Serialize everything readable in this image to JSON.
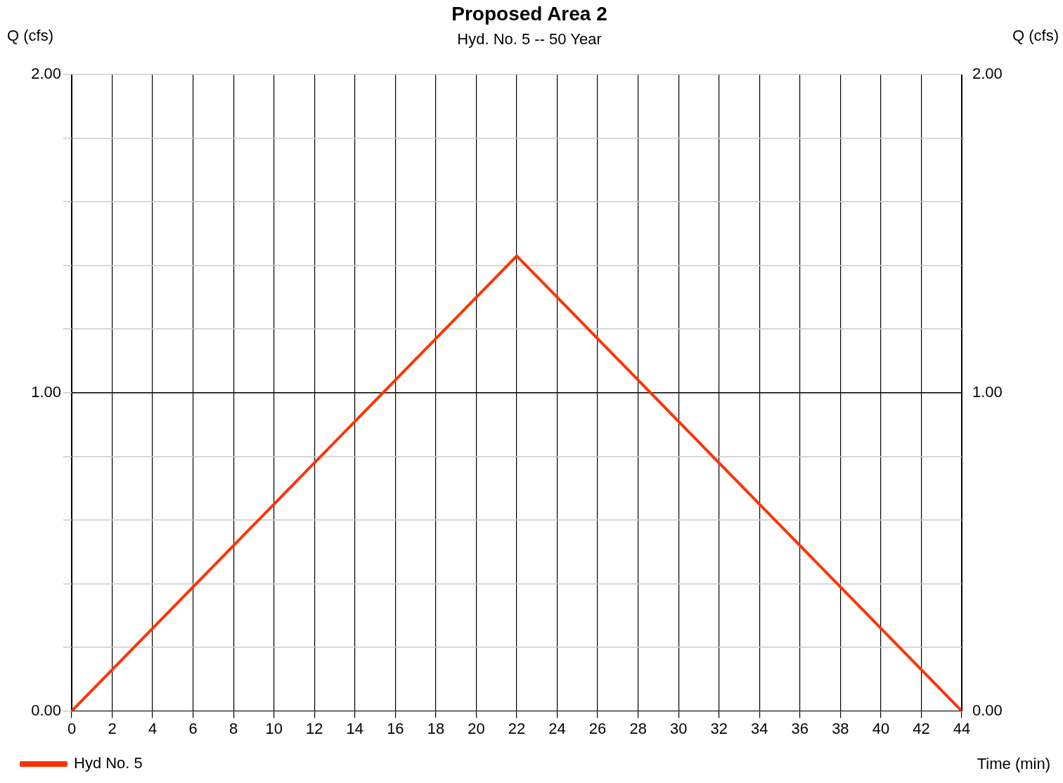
{
  "chart_data": {
    "type": "line",
    "title": "Proposed Area 2",
    "subtitle": "Hyd. No. 5 -- 50 Year",
    "xlabel": "Time (min)",
    "ylabel": "Q (cfs)",
    "y2label": "Q (cfs)",
    "x": [
      0,
      22,
      44
    ],
    "series": [
      {
        "name": "Hyd No. 5",
        "color": "#ff3300",
        "values": [
          0,
          1.43,
          0
        ]
      }
    ],
    "xlim": [
      0,
      44
    ],
    "xticks": [
      0,
      2,
      4,
      6,
      8,
      10,
      12,
      14,
      16,
      18,
      20,
      22,
      24,
      26,
      28,
      30,
      32,
      34,
      36,
      38,
      40,
      42,
      44
    ],
    "ylim": [
      0,
      2
    ],
    "yticks": [
      {
        "value": 0,
        "label": "0.00"
      },
      {
        "value": 0.2,
        "label": null
      },
      {
        "value": 0.4,
        "label": null
      },
      {
        "value": 0.6,
        "label": null
      },
      {
        "value": 0.8,
        "label": null
      },
      {
        "value": 1,
        "label": "1.00"
      },
      {
        "value": 1.2,
        "label": null
      },
      {
        "value": 1.4,
        "label": null
      },
      {
        "value": 1.6,
        "label": null
      },
      {
        "value": 1.8,
        "label": null
      },
      {
        "value": 2,
        "label": "2.00"
      }
    ],
    "y2lim": [
      0,
      2
    ],
    "y2ticks": [
      {
        "value": 0,
        "label": "0.00"
      },
      {
        "value": 0.2,
        "label": null
      },
      {
        "value": 0.4,
        "label": null
      },
      {
        "value": 0.6,
        "label": null
      },
      {
        "value": 0.8,
        "label": null
      },
      {
        "value": 1,
        "label": "1.00"
      },
      {
        "value": 1.2,
        "label": null
      },
      {
        "value": 1.4,
        "label": null
      },
      {
        "value": 1.6,
        "label": null
      },
      {
        "value": 1.8,
        "label": null
      },
      {
        "value": 2,
        "label": "2.00"
      }
    ],
    "ref_lines": [
      {
        "axis": "y",
        "value": 1,
        "color": "#000000"
      }
    ],
    "grid": true,
    "legend": "bottom left",
    "marker": "none",
    "line_style": "solid"
  }
}
